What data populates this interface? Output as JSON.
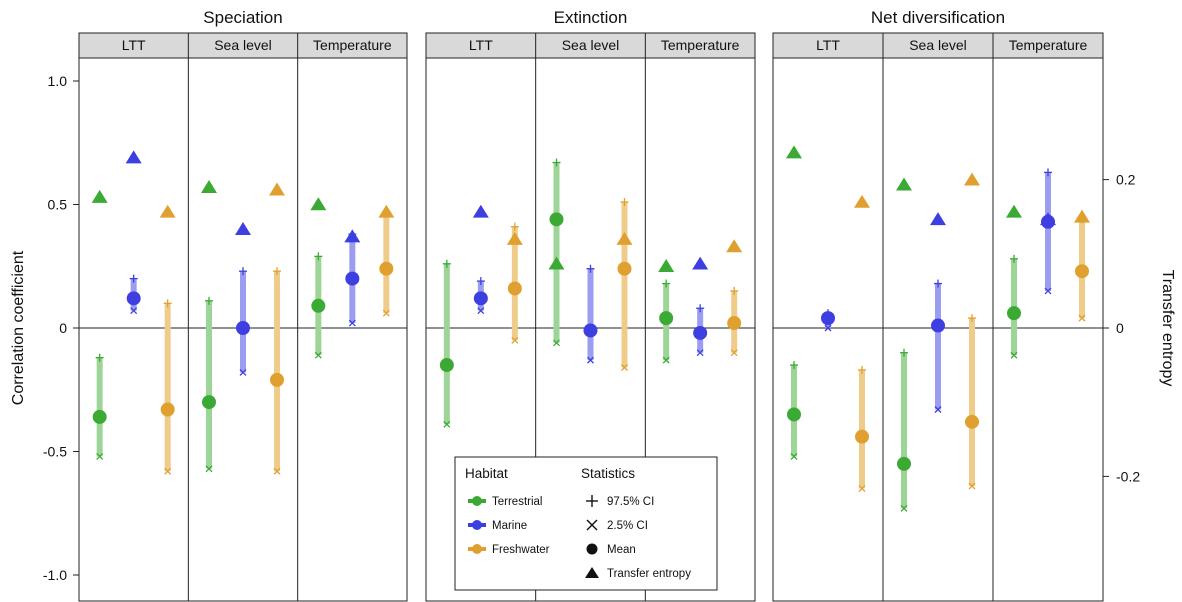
{
  "chart_data": {
    "type": "scatter",
    "panels": [
      {
        "title": "Speciation",
        "facets": [
          "LTT",
          "Sea level",
          "Temperature"
        ]
      },
      {
        "title": "Extinction",
        "facets": [
          "LTT",
          "Sea level",
          "Temperature"
        ]
      },
      {
        "title": "Net diversification",
        "facets": [
          "LTT",
          "Sea level",
          "Temperature"
        ]
      }
    ],
    "ylabel": "Correlation coefficient",
    "y2label": "Transfer entropy",
    "ylim": [
      -1.1,
      1.1
    ],
    "y2lim": [
      -0.367,
      0.367
    ],
    "yticks": [
      1.0,
      0.5,
      0,
      -0.5,
      -1.0
    ],
    "ytick_labels": [
      "1.0",
      "0.5",
      "0",
      "-0.5",
      "-1.0"
    ],
    "y2ticks": [
      0.2,
      0,
      -0.2
    ],
    "y2tick_labels": [
      "0.2",
      "0",
      "-0.2"
    ],
    "habitats": [
      {
        "name": "Terrestrial",
        "color": "#3aaa35",
        "light": "#9dd596"
      },
      {
        "name": "Marine",
        "color": "#3d3fe0",
        "light": "#9b9ef0"
      },
      {
        "name": "Freshwater",
        "color": "#e0a030",
        "light": "#f0cc8a"
      }
    ],
    "series": [
      {
        "name": "Speciation",
        "facets": [
          [
            {
              "habitat": "Terrestrial",
              "mean": -0.36,
              "lo": -0.52,
              "hi": -0.12,
              "te": 0.53
            },
            {
              "habitat": "Marine",
              "mean": 0.12,
              "lo": 0.07,
              "hi": 0.2,
              "te": 0.69
            },
            {
              "habitat": "Freshwater",
              "mean": -0.33,
              "lo": -0.58,
              "hi": 0.1,
              "te": 0.47
            }
          ],
          [
            {
              "habitat": "Terrestrial",
              "mean": -0.3,
              "lo": -0.57,
              "hi": 0.11,
              "te": 0.57
            },
            {
              "habitat": "Marine",
              "mean": 0.0,
              "lo": -0.18,
              "hi": 0.23,
              "te": 0.4
            },
            {
              "habitat": "Freshwater",
              "mean": -0.21,
              "lo": -0.58,
              "hi": 0.23,
              "te": 0.56
            }
          ],
          [
            {
              "habitat": "Terrestrial",
              "mean": 0.09,
              "lo": -0.11,
              "hi": 0.29,
              "te": 0.5
            },
            {
              "habitat": "Marine",
              "mean": 0.2,
              "lo": 0.02,
              "hi": 0.38,
              "te": 0.37
            },
            {
              "habitat": "Freshwater",
              "mean": 0.24,
              "lo": 0.06,
              "hi": 0.47,
              "te": 0.47
            }
          ]
        ]
      },
      {
        "name": "Extinction",
        "facets": [
          [
            {
              "habitat": "Terrestrial",
              "mean": -0.15,
              "lo": -0.39,
              "hi": 0.26,
              "te": null
            },
            {
              "habitat": "Marine",
              "mean": 0.12,
              "lo": 0.07,
              "hi": 0.19,
              "te": 0.47
            },
            {
              "habitat": "Freshwater",
              "mean": 0.16,
              "lo": -0.05,
              "hi": 0.41,
              "te": 0.36
            }
          ],
          [
            {
              "habitat": "Terrestrial",
              "mean": 0.44,
              "lo": -0.06,
              "hi": 0.67,
              "te": 0.26
            },
            {
              "habitat": "Marine",
              "mean": -0.01,
              "lo": -0.13,
              "hi": 0.24,
              "te": null
            },
            {
              "habitat": "Freshwater",
              "mean": 0.24,
              "lo": -0.16,
              "hi": 0.51,
              "te": 0.36
            }
          ],
          [
            {
              "habitat": "Terrestrial",
              "mean": 0.04,
              "lo": -0.13,
              "hi": 0.18,
              "te": 0.25
            },
            {
              "habitat": "Marine",
              "mean": -0.02,
              "lo": -0.1,
              "hi": 0.08,
              "te": 0.26
            },
            {
              "habitat": "Freshwater",
              "mean": 0.02,
              "lo": -0.1,
              "hi": 0.15,
              "te": 0.33
            }
          ]
        ]
      },
      {
        "name": "Net diversification",
        "facets": [
          [
            {
              "habitat": "Terrestrial",
              "mean": -0.35,
              "lo": -0.52,
              "hi": -0.15,
              "te": 0.71
            },
            {
              "habitat": "Marine",
              "mean": 0.04,
              "lo": 0.0,
              "hi": 0.06,
              "te": null
            },
            {
              "habitat": "Freshwater",
              "mean": -0.44,
              "lo": -0.65,
              "hi": -0.17,
              "te": 0.51
            }
          ],
          [
            {
              "habitat": "Terrestrial",
              "mean": -0.55,
              "lo": -0.73,
              "hi": -0.1,
              "te": 0.58
            },
            {
              "habitat": "Marine",
              "mean": 0.01,
              "lo": -0.33,
              "hi": 0.18,
              "te": 0.44
            },
            {
              "habitat": "Freshwater",
              "mean": -0.38,
              "lo": -0.64,
              "hi": 0.04,
              "te": 0.6
            }
          ],
          [
            {
              "habitat": "Terrestrial",
              "mean": 0.06,
              "lo": -0.11,
              "hi": 0.28,
              "te": 0.47
            },
            {
              "habitat": "Marine",
              "mean": 0.43,
              "lo": 0.15,
              "hi": 0.63,
              "te": 0.44
            },
            {
              "habitat": "Freshwater",
              "mean": 0.23,
              "lo": 0.04,
              "hi": 0.44,
              "te": 0.45
            }
          ]
        ]
      }
    ],
    "legend": {
      "placement": "bottom-center",
      "habitat_title": "Habitat",
      "statistics_title": "Statistics",
      "habitat_items": [
        "Terrestrial",
        "Marine",
        "Freshwater"
      ],
      "statistics_items": [
        {
          "label": "97.5% CI",
          "symbol": "plus"
        },
        {
          "label": "2.5% CI",
          "symbol": "cross"
        },
        {
          "label": "Mean",
          "symbol": "circle"
        },
        {
          "label": "Transfer entropy",
          "symbol": "triangle"
        }
      ]
    }
  }
}
